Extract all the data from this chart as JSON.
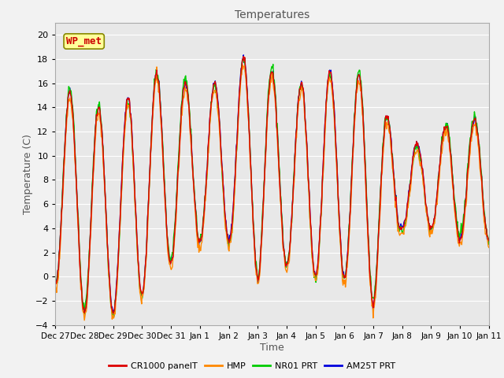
{
  "title": "Temperatures",
  "xlabel": "Time",
  "ylabel": "Temperature (C)",
  "annotation_text": "WP_met",
  "annotation_color": "#cc0000",
  "annotation_bg": "#ffff99",
  "annotation_border": "#888800",
  "ylim": [
    -4,
    21
  ],
  "yticks": [
    -4,
    -2,
    0,
    2,
    4,
    6,
    8,
    10,
    12,
    14,
    16,
    18,
    20
  ],
  "x_labels": [
    "Dec 27",
    "Dec 28",
    "Dec 29",
    "Dec 30",
    "Dec 31",
    "Jan 1",
    "Jan 2",
    "Jan 3",
    "Jan 4",
    "Jan 5",
    "Jan 6",
    "Jan 7",
    "Jan 8",
    "Jan 9",
    "Jan 10",
    "Jan 11"
  ],
  "series_colors": [
    "#dd0000",
    "#ff8800",
    "#00cc00",
    "#0000dd"
  ],
  "series_labels": [
    "CR1000 panelT",
    "HMP",
    "NR01 PRT",
    "AM25T PRT"
  ],
  "bg_color": "#e8e8e8",
  "grid_color": "#ffffff",
  "fig_bg": "#f2f2f2",
  "title_fontsize": 10,
  "axis_label_fontsize": 9,
  "tick_fontsize": 8,
  "annotation_fontsize": 9
}
